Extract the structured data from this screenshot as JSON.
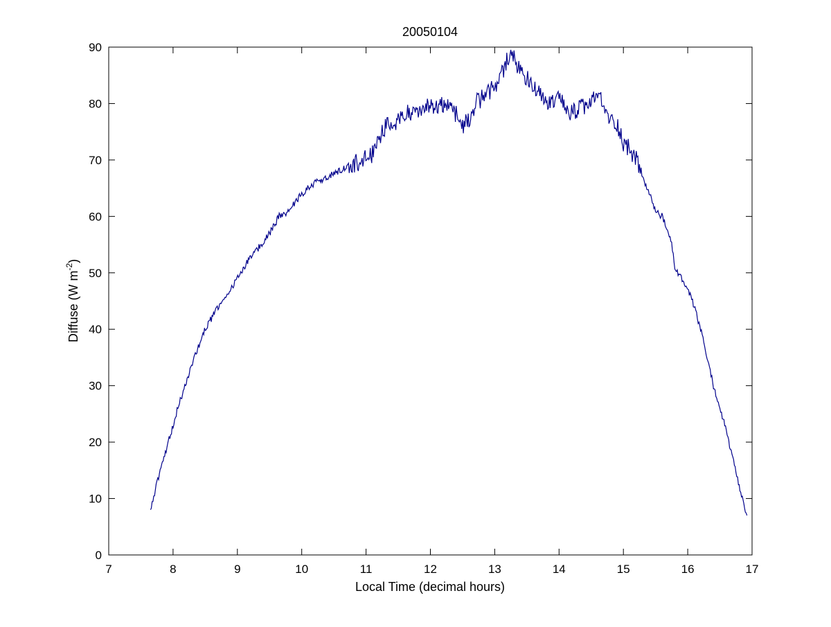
{
  "chart_data": {
    "type": "line",
    "title": "20050104",
    "xlabel": "Local Time (decimal hours)",
    "ylabel_main": "Diffuse (W m",
    "ylabel_sup": "-2",
    "ylabel_close": ")",
    "xlim": [
      7,
      17
    ],
    "ylim": [
      0,
      90
    ],
    "xticks": [
      7,
      8,
      9,
      10,
      11,
      12,
      13,
      14,
      15,
      16,
      17
    ],
    "xtick_labels": [
      "7",
      "8",
      "9",
      "10",
      "11",
      "12",
      "13",
      "14",
      "15",
      "16",
      "17"
    ],
    "yticks": [
      0,
      10,
      20,
      30,
      40,
      50,
      60,
      70,
      80,
      90
    ],
    "ytick_labels": [
      "0",
      "10",
      "20",
      "30",
      "40",
      "50",
      "60",
      "70",
      "80",
      "90"
    ],
    "grid": false,
    "line_color": "#00008b",
    "series": [
      {
        "x": [
          7.65,
          7.8,
          7.95,
          8.1,
          8.3,
          8.5,
          8.7,
          8.9,
          9.1,
          9.3,
          9.5,
          9.65,
          9.8,
          10.0,
          10.2,
          10.5,
          10.75,
          10.95,
          11.1,
          11.2,
          11.3,
          11.4,
          11.5,
          11.6,
          11.8,
          12.0,
          12.2,
          12.4,
          12.5,
          12.6,
          12.7,
          12.8,
          12.9,
          13.0,
          13.1,
          13.2,
          13.25,
          13.35,
          13.45,
          13.55,
          13.65,
          13.75,
          13.85,
          13.95,
          14.05,
          14.15,
          14.3,
          14.5,
          14.6,
          14.7,
          14.8,
          14.9,
          15.0,
          15.1,
          15.2,
          15.3,
          15.4,
          15.5,
          15.6,
          15.7,
          15.75,
          15.8,
          15.9,
          16.0,
          16.1,
          16.2,
          16.3,
          16.4,
          16.5,
          16.6,
          16.7,
          16.8,
          16.92
        ],
        "y": [
          8,
          15,
          21,
          27,
          34,
          40,
          44,
          47,
          51,
          54,
          57,
          60,
          61,
          64,
          66,
          67.5,
          69,
          70,
          71,
          74,
          76,
          76.5,
          77,
          78,
          79,
          79.5,
          80,
          78,
          76,
          77,
          80,
          81,
          82,
          83,
          85,
          88,
          89,
          87,
          85,
          84,
          82,
          81,
          80,
          81,
          80,
          78,
          79,
          80,
          82,
          79,
          77,
          76.5,
          73,
          72,
          70,
          67,
          64,
          61,
          60,
          57,
          55,
          51,
          49,
          47,
          44,
          40,
          35,
          30,
          26,
          22,
          17,
          12,
          7
        ]
      }
    ]
  }
}
